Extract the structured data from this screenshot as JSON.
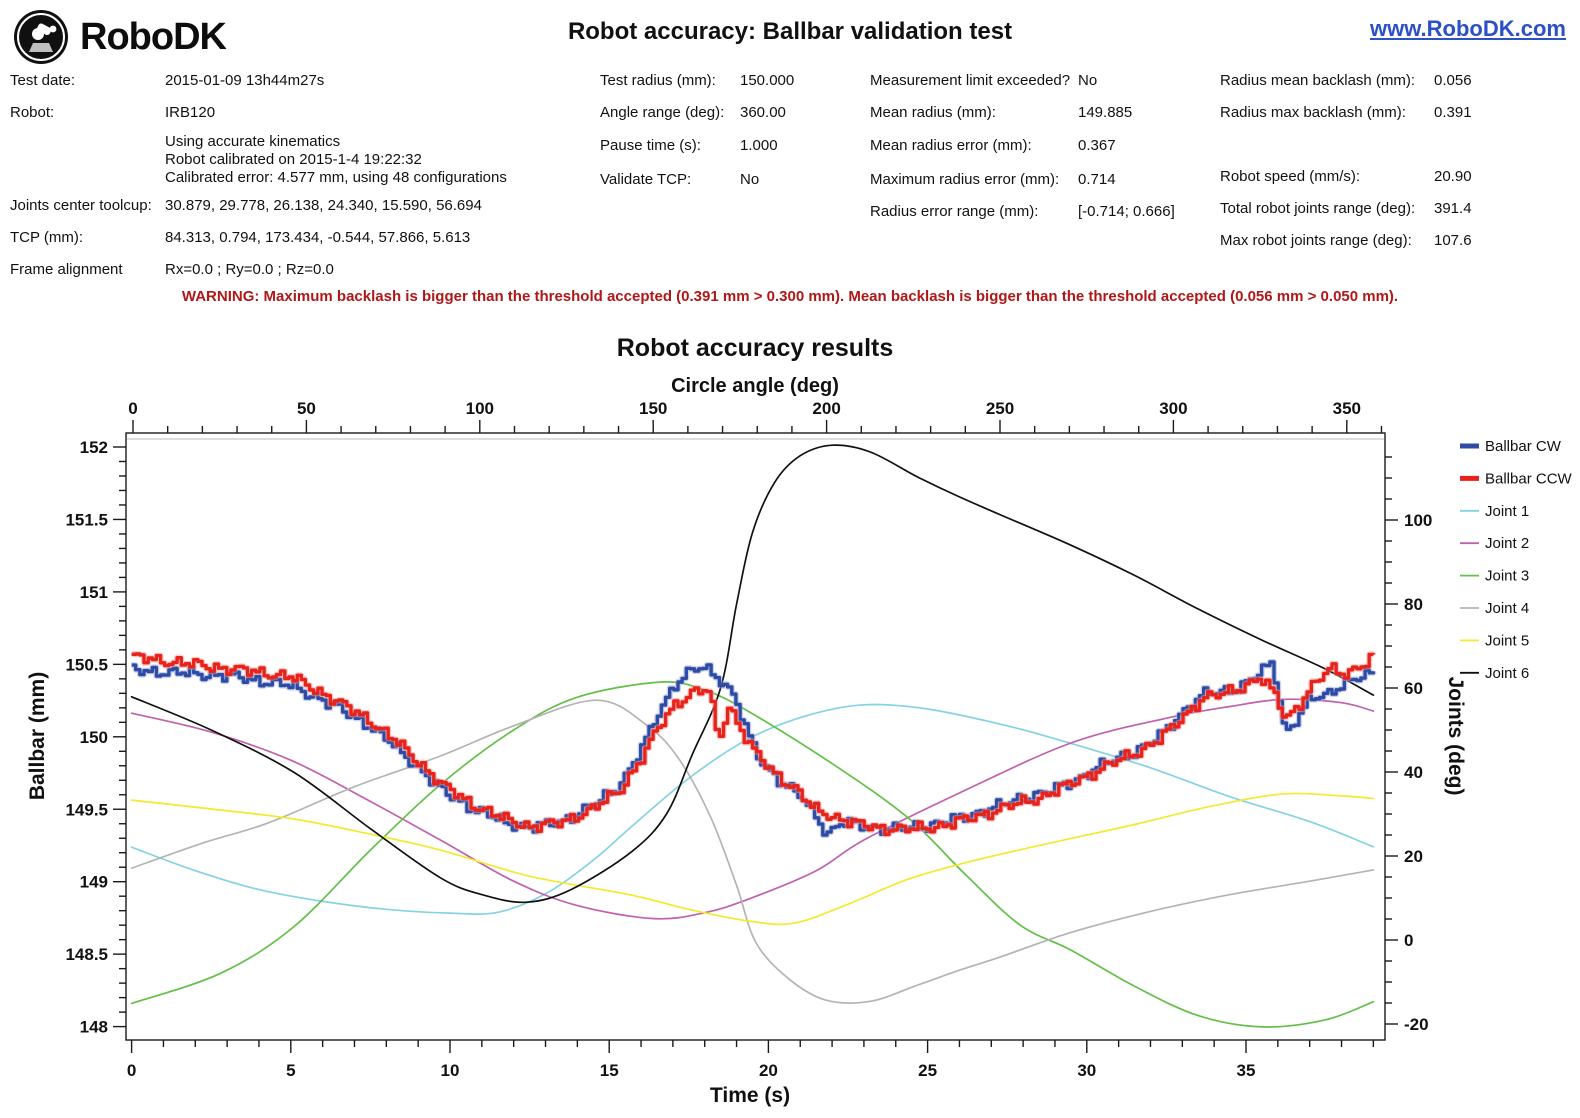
{
  "header": {
    "logo_text": "RoboDK",
    "title": "Robot accuracy: Ballbar validation test",
    "link": "www.RoboDK.com",
    "link_color": "#2b50c8"
  },
  "info": {
    "left_col": [
      {
        "label": "Test date:",
        "value": "2015-01-09 13h44m27s"
      },
      {
        "label": "Robot:",
        "value": "IRB120"
      },
      {
        "label": "",
        "lines": [
          "Using accurate kinematics",
          "Robot calibrated on 2015-1-4 19:22:32",
          "Calibrated error: 4.577 mm, using 48 configurations"
        ]
      },
      {
        "label": "Joints center toolcup:",
        "value": "30.879, 29.778, 26.138, 24.340, 15.590, 56.694"
      },
      {
        "label": "TCP (mm):",
        "value": "84.313, 0.794, 173.434, -0.544, 57.866, 5.613"
      },
      {
        "label": "Frame alignment",
        "value": "Rx=0.0 ; Ry=0.0 ; Rz=0.0"
      }
    ],
    "test_col": [
      {
        "label": "Test radius (mm):",
        "value": "150.000"
      },
      {
        "label": "Angle range (deg):",
        "value": "360.00"
      },
      {
        "label": "Pause time (s):",
        "value": "1.000"
      },
      {
        "label": "Validate TCP:",
        "value": "No"
      }
    ],
    "meas_col": [
      {
        "label": "Measurement limit exceeded?",
        "value": "No"
      },
      {
        "label": "Mean radius (mm):",
        "value": "149.885"
      },
      {
        "label": "Mean radius error (mm):",
        "value": "0.367"
      },
      {
        "label": "Maximum radius error (mm):",
        "value": "0.714"
      },
      {
        "label": "Radius error range (mm):",
        "value": "[-0.714; 0.666]"
      }
    ],
    "result_col": [
      {
        "label": "Radius mean backlash (mm):",
        "value": "0.056"
      },
      {
        "label": "Radius max backlash (mm):",
        "value": "0.391"
      },
      {
        "label": "Robot speed (mm/s):",
        "value": "20.90"
      },
      {
        "label": "Total robot joints range (deg):",
        "value": "391.4"
      },
      {
        "label": "Max robot joints range (deg):",
        "value": "107.6"
      }
    ]
  },
  "warning": {
    "text": "WARNING: Maximum backlash is bigger than the threshold accepted (0.391 mm > 0.300 mm). Mean backlash is bigger than the threshold accepted (0.056 mm > 0.050 mm).",
    "color": "#b01818"
  },
  "chart_data": {
    "type": "line",
    "title": "Robot accuracy results",
    "top_axis": {
      "label": "Circle angle (deg)",
      "min": 0,
      "max": 360,
      "major": 50,
      "minor": 10,
      "tick_labels": [
        "0",
        "50",
        "100",
        "150",
        "200",
        "250",
        "300",
        "350"
      ]
    },
    "bottom_axis": {
      "label": "Time (s)",
      "min": 0,
      "max": 39,
      "major": 5,
      "minor": 1,
      "tick_labels": [
        "0",
        "5",
        "10",
        "15",
        "20",
        "25",
        "30",
        "35"
      ]
    },
    "left_axis": {
      "label": "Ballbar (mm)",
      "min": 148,
      "max": 152,
      "major": 0.5,
      "minor": 0.1,
      "tick_labels": [
        "152",
        "151.5",
        "151",
        "150.5",
        "150",
        "149.5",
        "149",
        "148.5",
        "148"
      ]
    },
    "right_axis": {
      "label": "Joints (deg)",
      "min": -20,
      "max": 100,
      "major": 20,
      "minor": 5,
      "tick_labels": [
        "100",
        "80",
        "60",
        "40",
        "20",
        "0",
        "-20"
      ]
    },
    "legend": [
      {
        "label": "Ballbar CW",
        "color": "#2e4ca6",
        "thick": true
      },
      {
        "label": "Ballbar CCW",
        "color": "#e8231c",
        "thick": true
      },
      {
        "label": "Joint 1",
        "color": "#85d2e4",
        "thick": false
      },
      {
        "label": "Joint 2",
        "color": "#c161ae",
        "thick": false
      },
      {
        "label": "Joint 3",
        "color": "#64bf48",
        "thick": false
      },
      {
        "label": "Joint 4",
        "color": "#b4b4b4",
        "thick": false
      },
      {
        "label": "Joint 5",
        "color": "#f4e92c",
        "thick": false
      },
      {
        "label": "Joint 6",
        "color": "#111111",
        "thick": false
      }
    ],
    "joints": [
      {
        "name": "Joint 1",
        "color": "#85d2e4",
        "points": [
          [
            0,
            22.1
          ],
          [
            2,
            16.5
          ],
          [
            4,
            12
          ],
          [
            6,
            9.2
          ],
          [
            8,
            7.3
          ],
          [
            10,
            6.4
          ],
          [
            11.5,
            6.6
          ],
          [
            13,
            11
          ],
          [
            14.5,
            19
          ],
          [
            15.7,
            27
          ],
          [
            17.5,
            38.5
          ],
          [
            19.4,
            48
          ],
          [
            21.2,
            53.4
          ],
          [
            23,
            56
          ],
          [
            25,
            55
          ],
          [
            27.5,
            51
          ],
          [
            29.5,
            46.8
          ],
          [
            32,
            41
          ],
          [
            34.5,
            34.1
          ],
          [
            37,
            28.2
          ],
          [
            39,
            22.2
          ]
        ]
      },
      {
        "name": "Joint 2",
        "color": "#c161ae",
        "points": [
          [
            0,
            54
          ],
          [
            2.5,
            49.5
          ],
          [
            5,
            42.8
          ],
          [
            7.3,
            33.8
          ],
          [
            9.7,
            23.8
          ],
          [
            12,
            14
          ],
          [
            14,
            8.2
          ],
          [
            16.4,
            5.1
          ],
          [
            18,
            6.5
          ],
          [
            19.4,
            9.8
          ],
          [
            21.5,
            16.5
          ],
          [
            23,
            23.8
          ],
          [
            26,
            35
          ],
          [
            29.5,
            46.9
          ],
          [
            32.5,
            52.8
          ],
          [
            34.5,
            55.6
          ],
          [
            36.2,
            57.3
          ],
          [
            38,
            56.5
          ],
          [
            39,
            54.5
          ]
        ]
      },
      {
        "name": "Joint 3",
        "color": "#64bf48",
        "points": [
          [
            0,
            -15.1
          ],
          [
            2.8,
            -7.9
          ],
          [
            5.1,
            3.2
          ],
          [
            7.5,
            21.4
          ],
          [
            9.7,
            37
          ],
          [
            12,
            50
          ],
          [
            14,
            57.8
          ],
          [
            16.6,
            61.4
          ],
          [
            18,
            59.5
          ],
          [
            19.4,
            54.3
          ],
          [
            22,
            42
          ],
          [
            24.4,
            29
          ],
          [
            26.2,
            15.5
          ],
          [
            27.9,
            3.6
          ],
          [
            29.5,
            -2.4
          ],
          [
            31.5,
            -11
          ],
          [
            33.5,
            -18
          ],
          [
            35.5,
            -20.7
          ],
          [
            37.5,
            -19
          ],
          [
            39,
            -14.7
          ]
        ]
      },
      {
        "name": "Joint 4",
        "color": "#b4b4b4",
        "points": [
          [
            0,
            17.1
          ],
          [
            2.2,
            23
          ],
          [
            4.3,
            27.9
          ],
          [
            7,
            36.5
          ],
          [
            9.7,
            43.8
          ],
          [
            12,
            51
          ],
          [
            14.6,
            57.1
          ],
          [
            16.2,
            51
          ],
          [
            17.2,
            43
          ],
          [
            18.2,
            29
          ],
          [
            19,
            13
          ],
          [
            19.6,
            -0.5
          ],
          [
            20.6,
            -9
          ],
          [
            21.8,
            -14.3
          ],
          [
            23.2,
            -14.6
          ],
          [
            24.7,
            -10.7
          ],
          [
            26,
            -7.2
          ],
          [
            27.3,
            -4
          ],
          [
            29.5,
            1.8
          ],
          [
            32,
            6.8
          ],
          [
            34.5,
            10.8
          ],
          [
            37,
            14
          ],
          [
            39,
            16.7
          ]
        ]
      },
      {
        "name": "Joint 5",
        "color": "#f4e92c",
        "points": [
          [
            0,
            33.3
          ],
          [
            2.5,
            31.2
          ],
          [
            5.1,
            28.8
          ],
          [
            7.5,
            25.2
          ],
          [
            9.7,
            21.4
          ],
          [
            12.5,
            15.2
          ],
          [
            15.7,
            10.7
          ],
          [
            17.5,
            7.3
          ],
          [
            19.4,
            4.5
          ],
          [
            20.8,
            4.0
          ],
          [
            22.5,
            8.5
          ],
          [
            24.4,
            14.5
          ],
          [
            26.5,
            19
          ],
          [
            29.1,
            23.5
          ],
          [
            31.5,
            27.5
          ],
          [
            34,
            32
          ],
          [
            36.2,
            34.8
          ],
          [
            38,
            34.3
          ],
          [
            39,
            33.7
          ]
        ]
      },
      {
        "name": "Joint 6",
        "color": "#111111",
        "points": [
          [
            0,
            57.9
          ],
          [
            2.5,
            50
          ],
          [
            5.1,
            39.9
          ],
          [
            7.5,
            26.5
          ],
          [
            9.7,
            14.8
          ],
          [
            11,
            10.8
          ],
          [
            12.4,
            9
          ],
          [
            13.8,
            12
          ],
          [
            15.7,
            21
          ],
          [
            16.8,
            30
          ],
          [
            17.6,
            44
          ],
          [
            18.5,
            60
          ],
          [
            19,
            80
          ],
          [
            19.5,
            97
          ],
          [
            20.2,
            109
          ],
          [
            21,
            115.3
          ],
          [
            22,
            117.8
          ],
          [
            23.2,
            116.2
          ],
          [
            24.7,
            110.2
          ],
          [
            26,
            105.5
          ],
          [
            27.3,
            101.2
          ],
          [
            29.5,
            94
          ],
          [
            31.5,
            86.8
          ],
          [
            33.5,
            78.8
          ],
          [
            35.5,
            71.4
          ],
          [
            37.5,
            64.5
          ],
          [
            39,
            58.3
          ]
        ]
      }
    ],
    "ballbar_cw": {
      "name": "Ballbar CW",
      "color": "#2e4ca6",
      "noise_amp_mm": 0.045,
      "step_s": 0.13,
      "anchors": [
        [
          0,
          150.46
        ],
        [
          1.5,
          150.44
        ],
        [
          3,
          150.42
        ],
        [
          4.2,
          150.38
        ],
        [
          5,
          150.35
        ],
        [
          5.8,
          150.27
        ],
        [
          6.6,
          150.18
        ],
        [
          7.4,
          150.08
        ],
        [
          8.2,
          149.94
        ],
        [
          9,
          149.78
        ],
        [
          9.7,
          149.63
        ],
        [
          10.7,
          149.5
        ],
        [
          11.7,
          149.41
        ],
        [
          12.5,
          149.37
        ],
        [
          13.5,
          149.42
        ],
        [
          14.5,
          149.53
        ],
        [
          15.3,
          149.67
        ],
        [
          16,
          149.92
        ],
        [
          16.5,
          150.16
        ],
        [
          17,
          150.36
        ],
        [
          17.5,
          150.45
        ],
        [
          17.9,
          150.48
        ],
        [
          18.4,
          150.41
        ],
        [
          18.9,
          150.28
        ],
        [
          19.3,
          150.02
        ],
        [
          19.7,
          149.84
        ],
        [
          20.3,
          149.7
        ],
        [
          21,
          149.58
        ],
        [
          21.5,
          149.44
        ],
        [
          21.8,
          149.33
        ],
        [
          22.3,
          149.41
        ],
        [
          23,
          149.38
        ],
        [
          24,
          149.36
        ],
        [
          25,
          149.39
        ],
        [
          26,
          149.44
        ],
        [
          27,
          149.51
        ],
        [
          28,
          149.58
        ],
        [
          29,
          149.64
        ],
        [
          29.5,
          149.69
        ],
        [
          30.5,
          149.81
        ],
        [
          31.5,
          149.9
        ],
        [
          32.3,
          150.01
        ],
        [
          33,
          150.18
        ],
        [
          33.6,
          150.29
        ],
        [
          34.2,
          150.31
        ],
        [
          34.8,
          150.35
        ],
        [
          35.4,
          150.44
        ],
        [
          35.8,
          150.51
        ],
        [
          36.2,
          150.02
        ],
        [
          36.6,
          150.14
        ],
        [
          37,
          150.26
        ],
        [
          37.5,
          150.29
        ],
        [
          38,
          150.37
        ],
        [
          38.6,
          150.41
        ],
        [
          39,
          150.44
        ]
      ]
    },
    "ballbar_ccw": {
      "name": "Ballbar CCW",
      "color": "#e8231c",
      "noise_amp_mm": 0.045,
      "step_s": 0.13,
      "anchors": [
        [
          0,
          150.55
        ],
        [
          1.5,
          150.51
        ],
        [
          3,
          150.47
        ],
        [
          4.2,
          150.44
        ],
        [
          5,
          150.41
        ],
        [
          5.8,
          150.32
        ],
        [
          6.6,
          150.22
        ],
        [
          7.4,
          150.12
        ],
        [
          8.2,
          149.98
        ],
        [
          9,
          149.82
        ],
        [
          9.7,
          149.67
        ],
        [
          10.7,
          149.53
        ],
        [
          11.7,
          149.43
        ],
        [
          12.5,
          149.38
        ],
        [
          13.5,
          149.41
        ],
        [
          14.5,
          149.51
        ],
        [
          15.3,
          149.63
        ],
        [
          16,
          149.86
        ],
        [
          16.5,
          150.06
        ],
        [
          17,
          150.22
        ],
        [
          17.6,
          150.31
        ],
        [
          18.1,
          150.32
        ],
        [
          18.4,
          149.96
        ],
        [
          18.7,
          150.22
        ],
        [
          19.1,
          150.05
        ],
        [
          19.5,
          149.9
        ],
        [
          20.1,
          149.76
        ],
        [
          20.8,
          149.64
        ],
        [
          21.4,
          149.5
        ],
        [
          22,
          149.45
        ],
        [
          22.7,
          149.4
        ],
        [
          23.5,
          149.37
        ],
        [
          24.5,
          149.36
        ],
        [
          25.5,
          149.39
        ],
        [
          26.5,
          149.45
        ],
        [
          27.5,
          149.52
        ],
        [
          28.5,
          149.58
        ],
        [
          29.5,
          149.68
        ],
        [
          30.5,
          149.79
        ],
        [
          31.5,
          149.89
        ],
        [
          32.3,
          149.99
        ],
        [
          33,
          150.14
        ],
        [
          33.6,
          150.27
        ],
        [
          34.2,
          150.29
        ],
        [
          34.8,
          150.34
        ],
        [
          35.4,
          150.41
        ],
        [
          35.9,
          150.28
        ],
        [
          36.2,
          150.12
        ],
        [
          36.6,
          150.22
        ],
        [
          37.1,
          150.36
        ],
        [
          37.6,
          150.47
        ],
        [
          38.1,
          150.44
        ],
        [
          38.7,
          150.5
        ],
        [
          39,
          150.55
        ]
      ]
    }
  }
}
